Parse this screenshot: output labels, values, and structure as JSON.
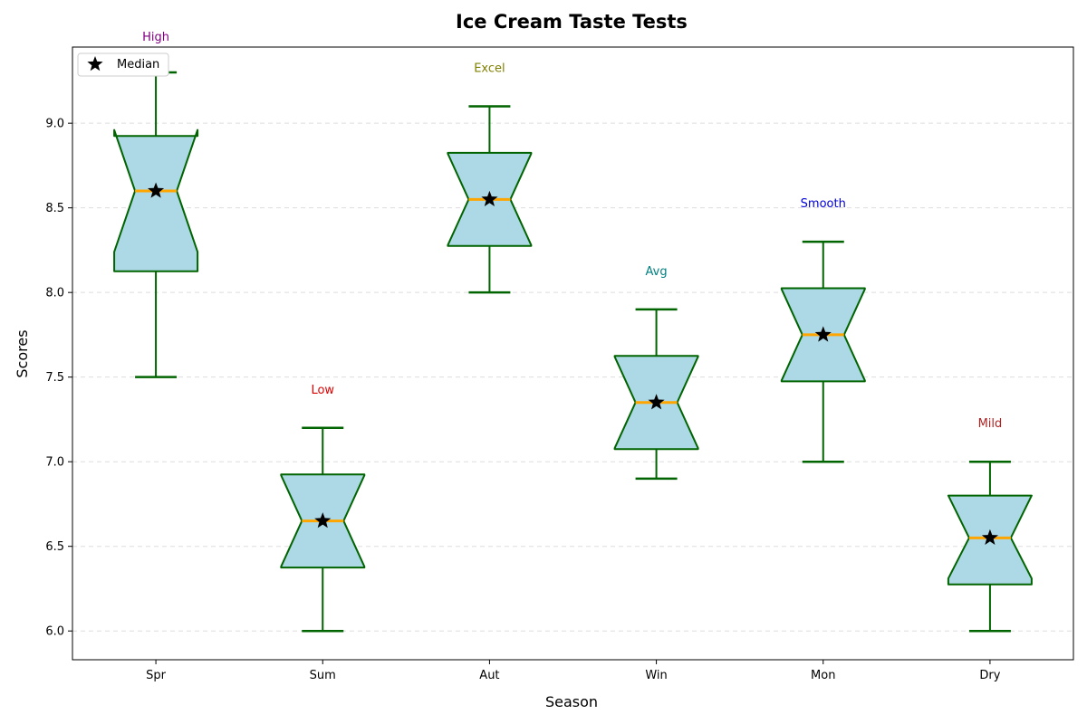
{
  "chart_data": {
    "type": "box",
    "title": "Ice Cream Taste Tests",
    "xlabel": "Season",
    "ylabel": "Scores",
    "categories": [
      "Spr",
      "Sum",
      "Aut",
      "Win",
      "Mon",
      "Dry"
    ],
    "ylim": [
      5.83,
      9.45
    ],
    "yticks": [
      "6.0",
      "6.5",
      "7.0",
      "7.5",
      "8.0",
      "8.5",
      "9.0"
    ],
    "grid": "horizontal dashed",
    "boxes": [
      {
        "category": "Spr",
        "whisker_low": 7.5,
        "q1": 8.125,
        "median": 8.6,
        "q3": 8.925,
        "whisker_high": 9.3,
        "notch_low": 8.24,
        "notch_high": 8.96,
        "annotation": "High",
        "annotation_color": "#800080"
      },
      {
        "category": "Sum",
        "whisker_low": 6.0,
        "q1": 6.375,
        "median": 6.65,
        "q3": 6.925,
        "whisker_high": 7.2,
        "notch_low": 6.38,
        "notch_high": 6.92,
        "annotation": "Low",
        "annotation_color": "#e00000"
      },
      {
        "category": "Aut",
        "whisker_low": 8.0,
        "q1": 8.275,
        "median": 8.55,
        "q3": 8.825,
        "whisker_high": 9.1,
        "notch_low": 8.28,
        "notch_high": 8.82,
        "annotation": "Excel",
        "annotation_color": "#808000"
      },
      {
        "category": "Win",
        "whisker_low": 6.9,
        "q1": 7.075,
        "median": 7.35,
        "q3": 7.625,
        "whisker_high": 7.9,
        "notch_low": 7.08,
        "notch_high": 7.62,
        "annotation": "Avg",
        "annotation_color": "#008080"
      },
      {
        "category": "Mon",
        "whisker_low": 7.0,
        "q1": 7.475,
        "median": 7.75,
        "q3": 8.025,
        "whisker_high": 8.3,
        "notch_low": 7.48,
        "notch_high": 8.02,
        "annotation": "Smooth",
        "annotation_color": "#0000dd"
      },
      {
        "category": "Dry",
        "whisker_low": 6.0,
        "q1": 6.275,
        "median": 6.55,
        "q3": 6.8,
        "whisker_high": 7.0,
        "notch_low": 6.31,
        "notch_high": 6.8,
        "annotation": "Mild",
        "annotation_color": "#b22222"
      }
    ],
    "legend": {
      "label": "Median",
      "placement": "top-left"
    },
    "colors": {
      "box_fill": "#add8e6",
      "box_edge": "#006400",
      "median_line": "#ffa500",
      "median_marker": "#000000"
    }
  }
}
